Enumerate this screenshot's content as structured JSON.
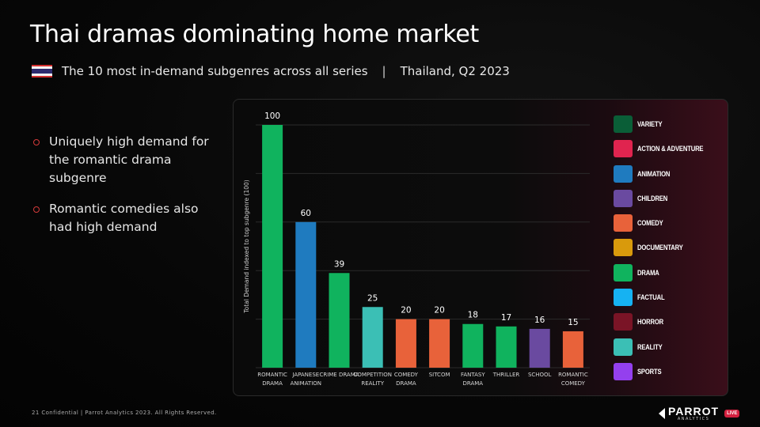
{
  "header": {
    "title": "Thai dramas dominating home market",
    "subtitle": "The 10 most in-demand subgenres across all series",
    "separator": "|",
    "region": "Thailand, Q2 2023",
    "flag_icon": "thailand-flag-icon"
  },
  "bullets": [
    "Uniquely high demand for the romantic drama subgenre",
    "Romantic comedies also had high demand"
  ],
  "colors": {
    "accent": "#d43a3a"
  },
  "legend": [
    {
      "label": "VARIETY",
      "color": "#0a5e37"
    },
    {
      "label": "ACTION & ADVENTURE",
      "color": "#e0244f"
    },
    {
      "label": "ANIMATION",
      "color": "#1f7bbf"
    },
    {
      "label": "CHILDREN",
      "color": "#6a4aa0"
    },
    {
      "label": "COMEDY",
      "color": "#e8623a"
    },
    {
      "label": "DOCUMENTARY",
      "color": "#d99a0c"
    },
    {
      "label": "DRAMA",
      "color": "#10b35e"
    },
    {
      "label": "FACTUAL",
      "color": "#16b2f2"
    },
    {
      "label": "HORROR",
      "color": "#7a1426"
    },
    {
      "label": "REALITY",
      "color": "#3bbfb5"
    },
    {
      "label": "SPORTS",
      "color": "#9440ee"
    }
  ],
  "chart_data": {
    "type": "bar",
    "title": "",
    "xlabel": "",
    "ylabel": "Total Demand indexed to top subgenre (100)",
    "ylim": [
      0,
      100
    ],
    "grid": true,
    "categories": [
      [
        "ROMANTIC",
        "DRAMA"
      ],
      [
        "JAPANESE",
        "ANIMATION"
      ],
      [
        "CRIME DRAMA"
      ],
      [
        "COMPETITION",
        "REALITY"
      ],
      [
        "COMEDY",
        "DRAMA"
      ],
      [
        "SITCOM"
      ],
      [
        "FANTASY",
        "DRAMA"
      ],
      [
        "THRILLER"
      ],
      [
        "SCHOOL"
      ],
      [
        "ROMANTIC",
        "COMEDY"
      ]
    ],
    "values": [
      100,
      60,
      39,
      25,
      20,
      20,
      18,
      17,
      16,
      15
    ],
    "genres": [
      "DRAMA",
      "ANIMATION",
      "DRAMA",
      "REALITY",
      "COMEDY",
      "COMEDY",
      "DRAMA",
      "DRAMA",
      "CHILDREN",
      "COMEDY"
    ]
  },
  "footer": {
    "text": "21 Confidential | Parrot Analytics 2023. All Rights Reserved."
  },
  "logo": {
    "name": "PARROT",
    "sub": "ANALYTICS",
    "badge": "LIVE"
  }
}
